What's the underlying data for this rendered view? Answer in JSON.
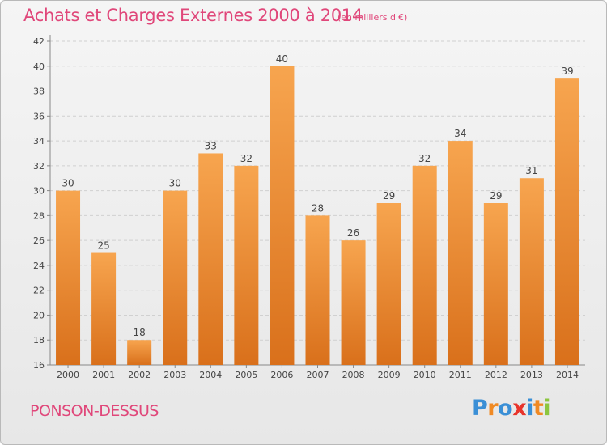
{
  "header": {
    "title": "Achats et Charges Externes 2000 à 2014",
    "subtitle": "(en milliers d'€)"
  },
  "footer": {
    "place": "PONSON-DESSUS",
    "logo_text": "Proxiti",
    "logo_colors": [
      "#3a8fd6",
      "#f08a24",
      "#3a8fd6",
      "#e8342b",
      "#3a8fd6",
      "#f08a24",
      "#8cc63f"
    ]
  },
  "colors": {
    "bar_light": "#f7a54f",
    "bar_dark": "#d9701b",
    "accent": "#e0477a"
  },
  "chart_data": {
    "type": "bar",
    "categories": [
      "2000",
      "2001",
      "2002",
      "2003",
      "2004",
      "2005",
      "2006",
      "2007",
      "2008",
      "2009",
      "2010",
      "2011",
      "2012",
      "2013",
      "2014"
    ],
    "values": [
      30,
      25,
      18,
      30,
      33,
      32,
      40,
      28,
      26,
      29,
      32,
      34,
      29,
      31,
      39
    ],
    "value_labels": [
      "30",
      "25",
      "18",
      "30",
      "33",
      "32",
      "40",
      "28",
      "26",
      "29",
      "32",
      "34",
      "29",
      "31",
      "39"
    ],
    "y_ticks": [
      "16",
      "18",
      "20",
      "22",
      "24",
      "26",
      "28",
      "30",
      "32",
      "34",
      "36",
      "38",
      "40",
      "42"
    ],
    "ylim": [
      16,
      42
    ],
    "grid": true,
    "title": "Achats et Charges Externes 2000 à 2014",
    "xlabel": "",
    "ylabel": ""
  }
}
